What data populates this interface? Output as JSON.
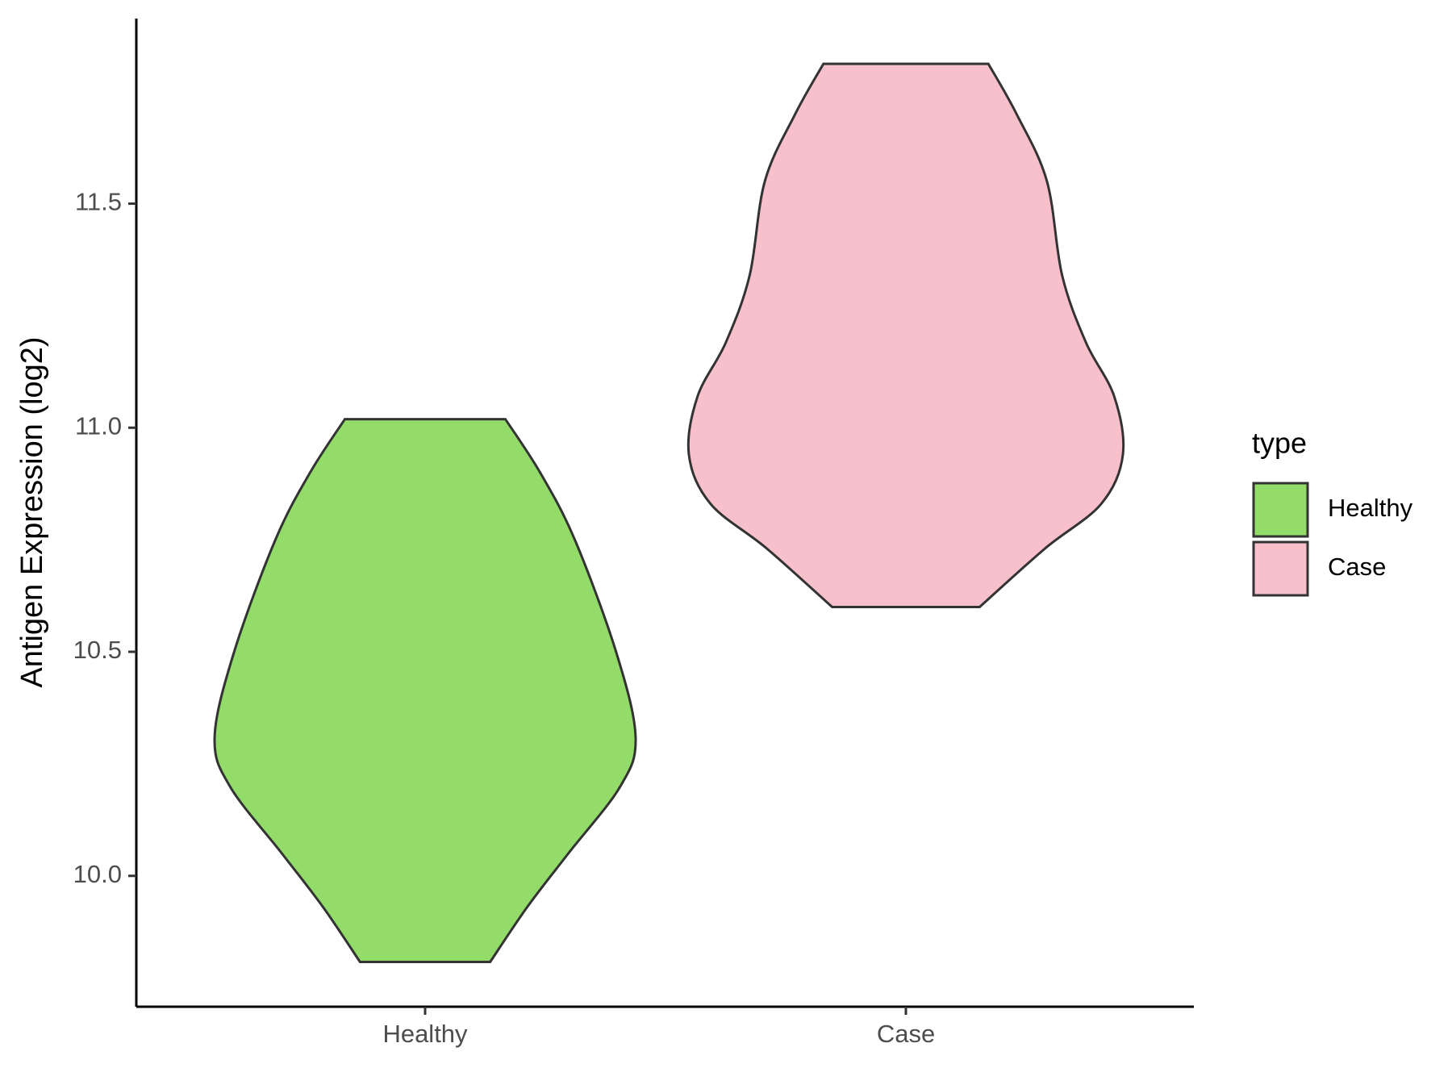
{
  "chart_data": {
    "type": "violin",
    "y_label": "Antigen Expression (log2)",
    "legend_title": "type",
    "ylim": [
      9.708,
      11.913
    ],
    "yticks": [
      {
        "value": 10,
        "label": "10.0"
      },
      10.5,
      {
        "value": 11,
        "label": "11.0"
      },
      11.5
    ],
    "series": [
      {
        "name": "Healthy",
        "color": "#93dc6a",
        "y": [
          11.019,
          10.9,
          10.75,
          10.5,
          10.31,
          10.2,
          10.05,
          9.93,
          9.808
        ],
        "density": [
          0.37,
          0.53,
          0.69,
          0.88,
          0.97,
          0.9,
          0.66,
          0.47,
          0.3
        ]
      },
      {
        "name": "Case",
        "color": "#f7c0cb",
        "y": [
          11.812,
          11.7,
          11.55,
          11.34,
          11.19,
          11.07,
          10.94,
          10.83,
          10.73,
          10.6
        ],
        "density": [
          0.38,
          0.51,
          0.65,
          0.72,
          0.83,
          0.96,
          1.0,
          0.9,
          0.64,
          0.34
        ]
      }
    ]
  }
}
